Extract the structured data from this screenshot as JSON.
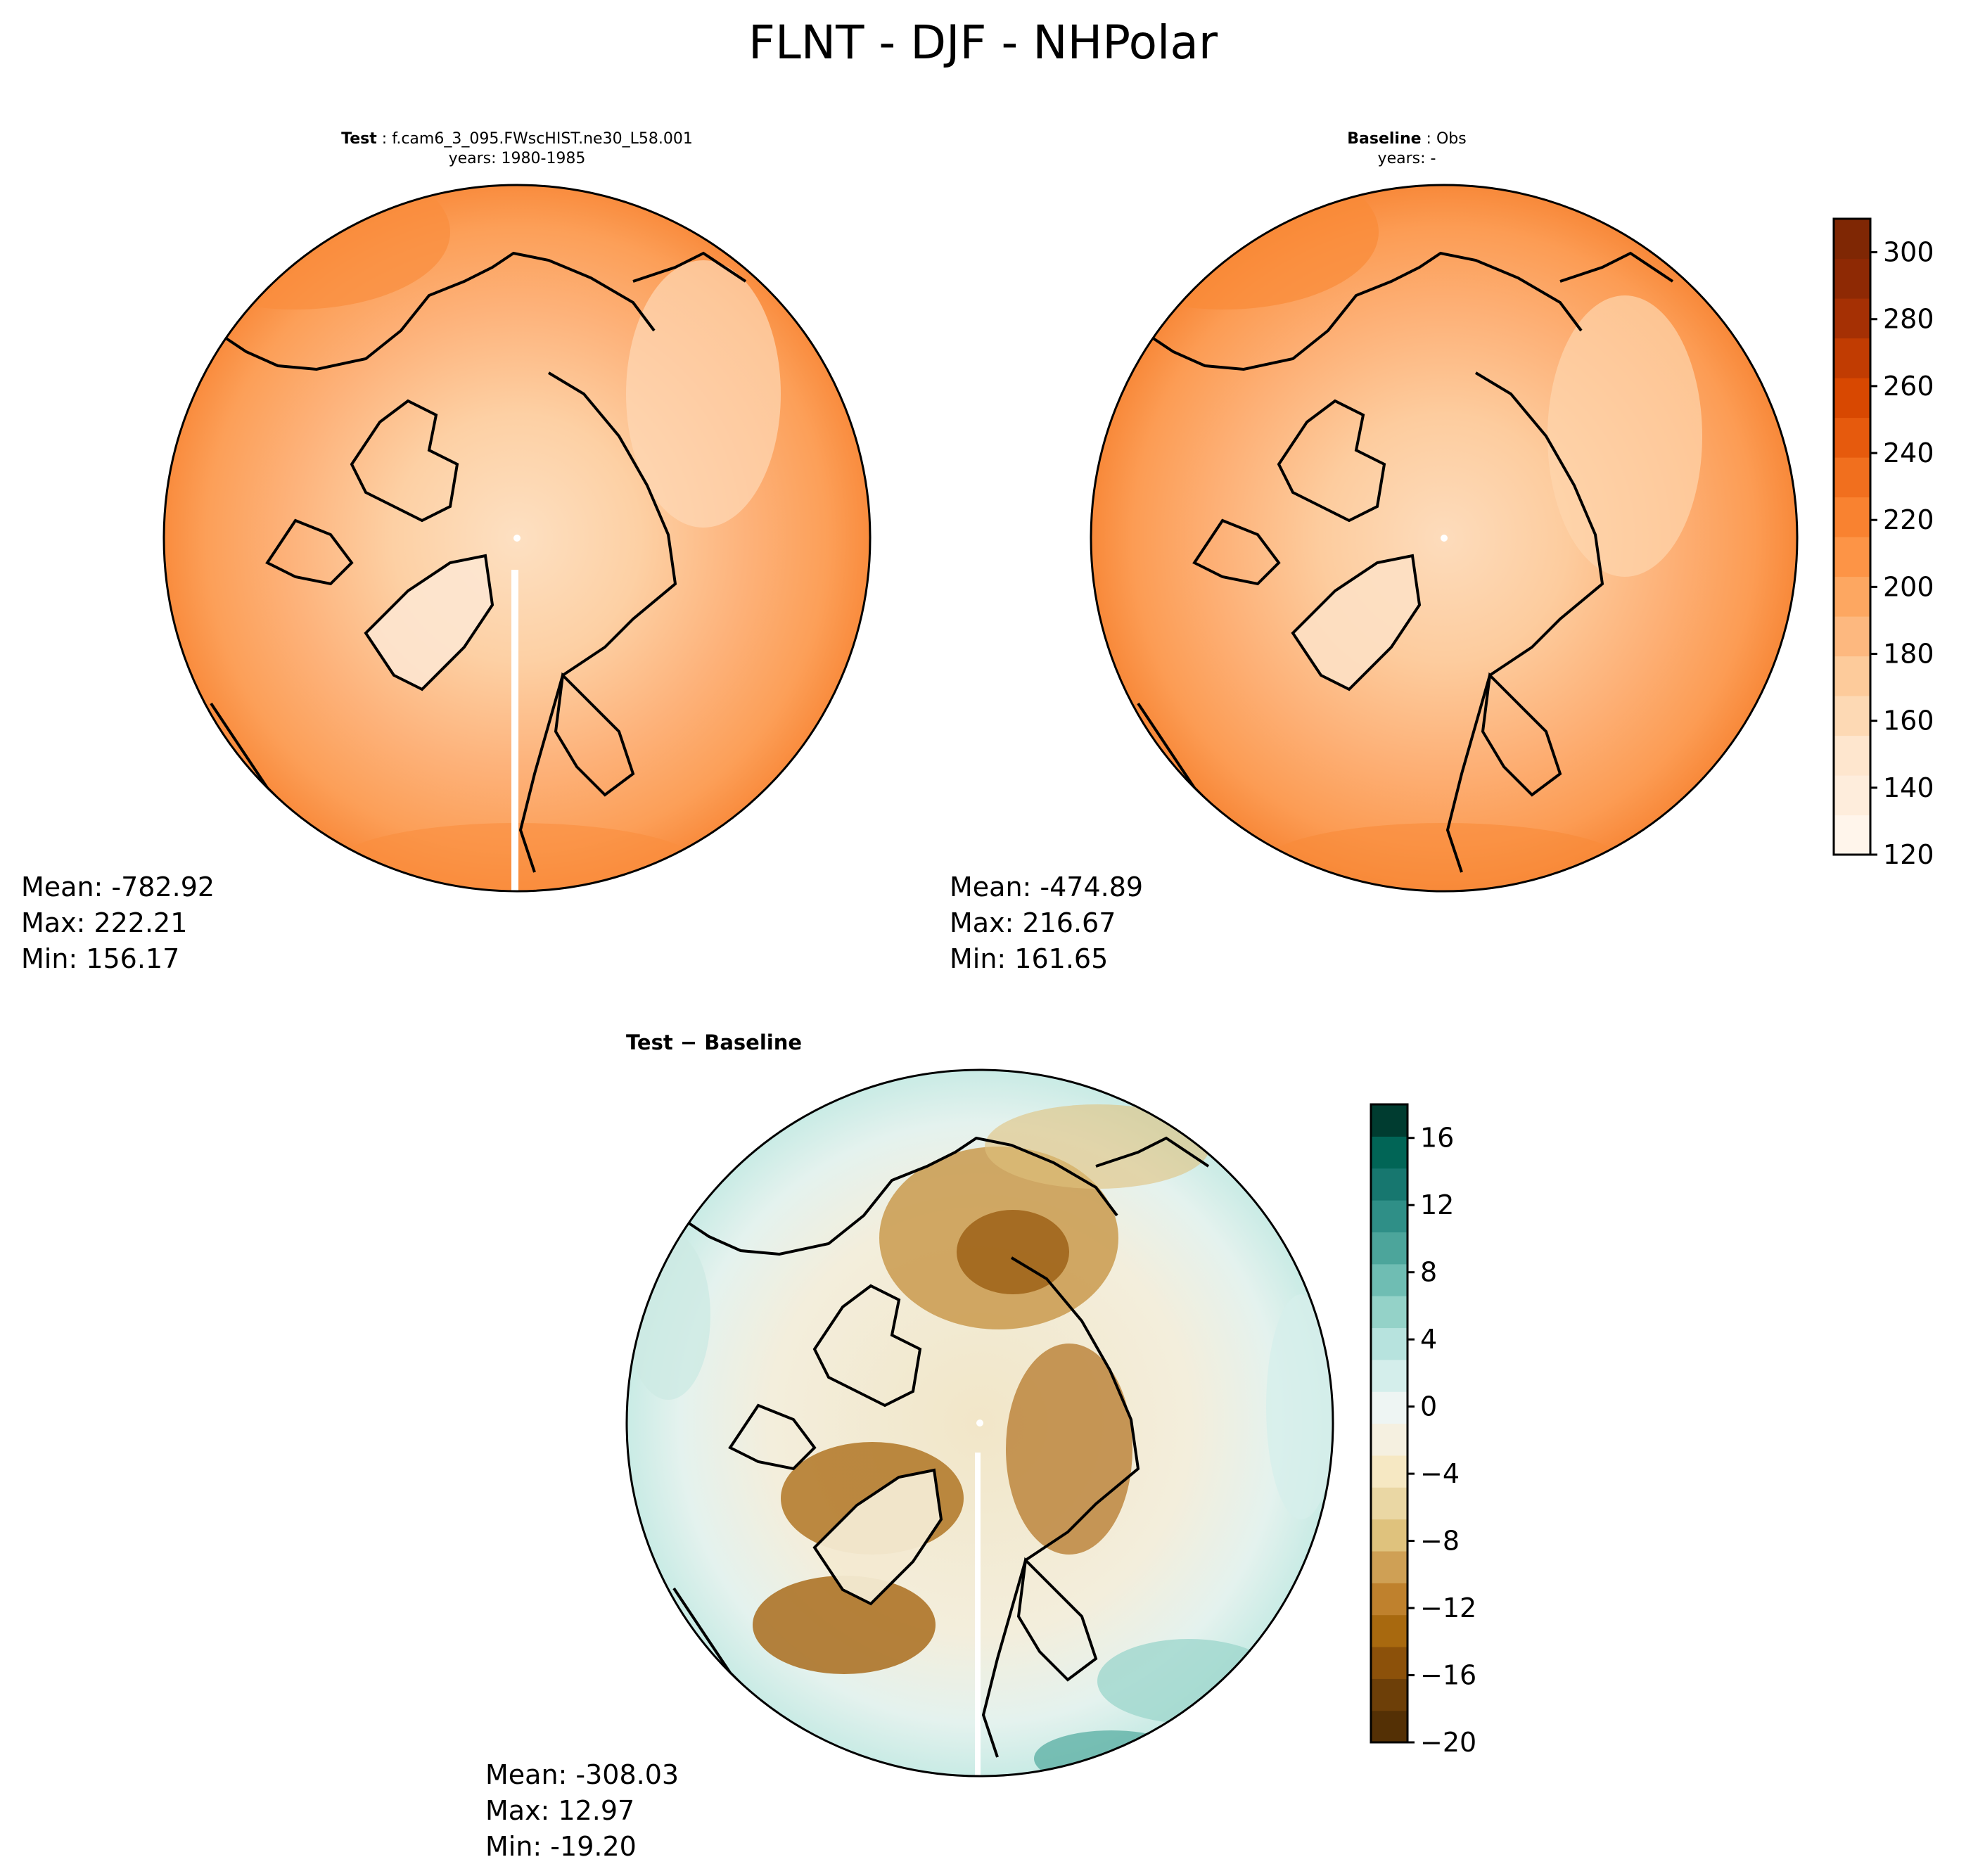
{
  "figure": {
    "title": "FLNT - DJF - NHPolar"
  },
  "panels": {
    "test": {
      "label": "Test",
      "case": "f.cam6_3_095.FWscHIST.ne30_L58.001",
      "years": "years: 1980-1985",
      "mean": "Mean: -782.92",
      "max": "Max: 222.21",
      "min": "Min: 156.17"
    },
    "baseline": {
      "label": "Baseline",
      "case": "Obs",
      "years": "years: -",
      "mean": "Mean: -474.89",
      "max": "Max: 216.67",
      "min": "Min: 161.65"
    },
    "diff": {
      "title": "Test − Baseline",
      "mean": "Mean: -308.03",
      "max": "Max: 12.97",
      "min": "Min: -19.20"
    }
  },
  "colorbars": {
    "abs": {
      "colormap": "Oranges",
      "range": [
        120,
        310
      ],
      "ticks": [
        "120",
        "140",
        "160",
        "180",
        "200",
        "220",
        "240",
        "260",
        "280",
        "300"
      ],
      "colors": [
        "#fff5eb",
        "#feeddc",
        "#fee6ce",
        "#fdd9b4",
        "#fdcb9b",
        "#fdb87f",
        "#fda761",
        "#fd9446",
        "#f98230",
        "#f16f1e",
        "#e65a0d",
        "#d84801",
        "#c13c02",
        "#a53004",
        "#8e2904",
        "#7f2704"
      ]
    },
    "diff": {
      "colormap": "BrBG",
      "range": [
        -20,
        18
      ],
      "ticks": [
        "−20",
        "−16",
        "−12",
        "−8",
        "−4",
        "0",
        "4",
        "8",
        "12",
        "16"
      ],
      "colors": [
        "#543005",
        "#6d3f08",
        "#8c510a",
        "#a8690f",
        "#bf812d",
        "#cfa055",
        "#dfc27d",
        "#ead7a4",
        "#f6e8c3",
        "#f5f0e0",
        "#eef5f3",
        "#d4eeeb",
        "#b7e3de",
        "#94d2c8",
        "#6fbdb3",
        "#4ca59b",
        "#2f8f87",
        "#17776f",
        "#016556",
        "#003c30"
      ]
    }
  }
}
